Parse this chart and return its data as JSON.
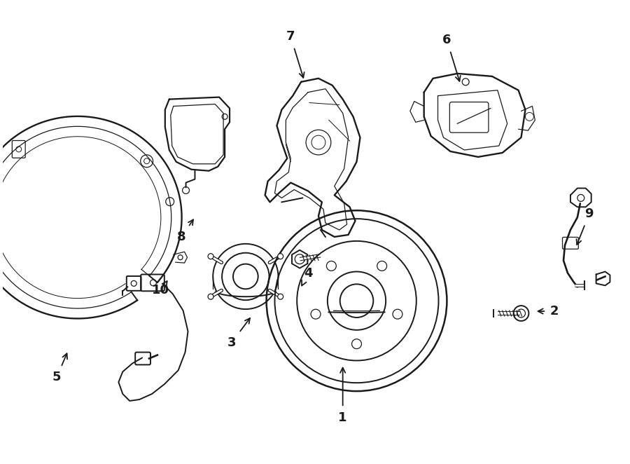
{
  "bg_color": "#ffffff",
  "line_color": "#1a1a1a",
  "figsize": [
    9.0,
    6.62
  ],
  "dpi": 100,
  "annotations": [
    [
      "1",
      490,
      598,
      490,
      520
    ],
    [
      "2",
      795,
      445,
      765,
      445
    ],
    [
      "3",
      330,
      490,
      360,
      450
    ],
    [
      "4",
      440,
      390,
      430,
      410
    ],
    [
      "5",
      78,
      540,
      95,
      500
    ],
    [
      "6",
      640,
      55,
      660,
      120
    ],
    [
      "7",
      415,
      50,
      435,
      115
    ],
    [
      "8",
      258,
      338,
      278,
      308
    ],
    [
      "9",
      845,
      305,
      825,
      355
    ],
    [
      "10",
      228,
      415,
      238,
      400
    ]
  ]
}
